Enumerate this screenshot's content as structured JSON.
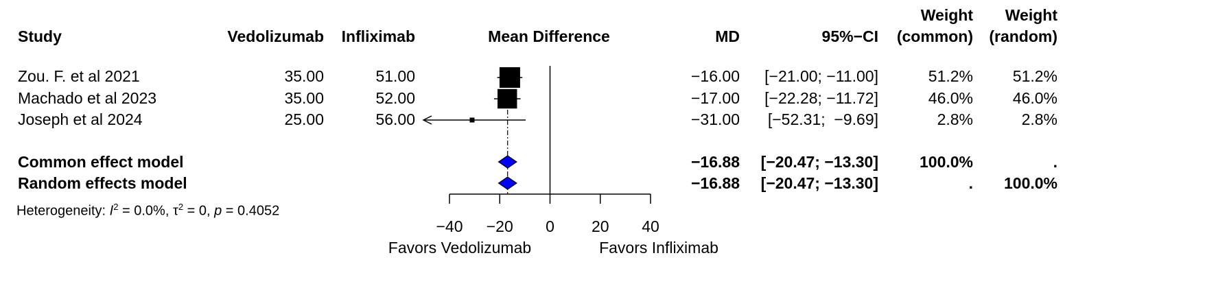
{
  "chart_data": {
    "type": "forest",
    "columns": {
      "study": "Study",
      "vedolizumab": "Vedolizumab",
      "infliximab": "Infliximab",
      "plot": "Mean Difference",
      "md": "MD",
      "ci": "95%−CI",
      "weight_common_line1": "Weight",
      "weight_common_line2": "(common)",
      "weight_random_line1": "Weight",
      "weight_random_line2": "(random)"
    },
    "studies": [
      {
        "name": "Zou. F. et al 2021",
        "vedolizumab": "35.00",
        "infliximab": "51.00",
        "md": -16.0,
        "lower": -21.0,
        "upper": -11.0,
        "weight": 51.2,
        "md_text": "−16.00",
        "ci_text": "[−21.00; −11.00]",
        "w_common": "51.2%",
        "w_random": "51.2%"
      },
      {
        "name": "Machado et al 2023",
        "vedolizumab": "35.00",
        "infliximab": "52.00",
        "md": -17.0,
        "lower": -22.28,
        "upper": -11.72,
        "weight": 46.0,
        "md_text": "−17.00",
        "ci_text": "[−22.28; −11.72]",
        "w_common": "46.0%",
        "w_random": "46.0%"
      },
      {
        "name": "Joseph et al 2024",
        "vedolizumab": "25.00",
        "infliximab": "56.00",
        "md": -31.0,
        "lower": -52.31,
        "upper": -9.69,
        "weight": 2.8,
        "md_text": "−31.00",
        "ci_text": "[−52.31;  −9.69]",
        "w_common": "2.8%",
        "w_random": "2.8%"
      }
    ],
    "pooled": [
      {
        "name": "Common effect model",
        "md": -16.88,
        "lower": -20.47,
        "upper": -13.3,
        "md_text": "−16.88",
        "ci_text": "[−20.47; −13.30]",
        "w_common": "100.0%",
        "w_random": "."
      },
      {
        "name": "Random effects model",
        "md": -16.88,
        "lower": -20.47,
        "upper": -13.3,
        "md_text": "−16.88",
        "ci_text": "[−20.47; −13.30]",
        "w_common": ".",
        "w_random": "100.0%"
      }
    ],
    "heterogeneity": {
      "prefix": "Heterogeneity: ",
      "i2_symbol": "I",
      "i2_value": " = 0.0%, ",
      "tau_symbol": "τ",
      "tau_value": " = 0, ",
      "p_symbol": "p",
      "p_value": " = 0.4052",
      "superscript": "2"
    },
    "axis": {
      "xlim": [
        -40,
        40
      ],
      "ticks": [
        -40,
        -20,
        0,
        20,
        40
      ],
      "tick_labels": [
        "−40",
        "−20",
        "0",
        "20",
        "40"
      ],
      "null_value": 0
    },
    "favors_left": "Favors Vedolizumab",
    "favors_right": "Favors Infliximab",
    "colors": {
      "marker": "#000000",
      "diamond_fill": "#0000ff",
      "diamond_stroke": "#000000"
    }
  }
}
